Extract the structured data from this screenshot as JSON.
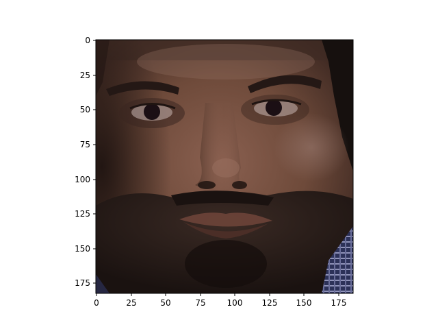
{
  "chart_data": {
    "type": "image",
    "content": "face-photo",
    "x_ticks": [
      "0",
      "25",
      "50",
      "75",
      "100",
      "125",
      "150",
      "175"
    ],
    "y_ticks": [
      "0",
      "25",
      "50",
      "75",
      "100",
      "125",
      "150",
      "175"
    ],
    "xlim": [
      -0.5,
      185.5
    ],
    "ylim": [
      182.5,
      -0.5
    ],
    "x_tick_values": [
      0,
      25,
      50,
      75,
      100,
      125,
      150,
      175
    ],
    "y_tick_values": [
      0,
      25,
      50,
      75,
      100,
      125,
      150,
      175
    ],
    "grid": false,
    "colors": {
      "skin": "#6e4a3a",
      "skin_dark": "#3a2620",
      "beard": "#241815",
      "hair": "#16100e",
      "shirt": "#2c3158",
      "frame": "#000000"
    }
  }
}
